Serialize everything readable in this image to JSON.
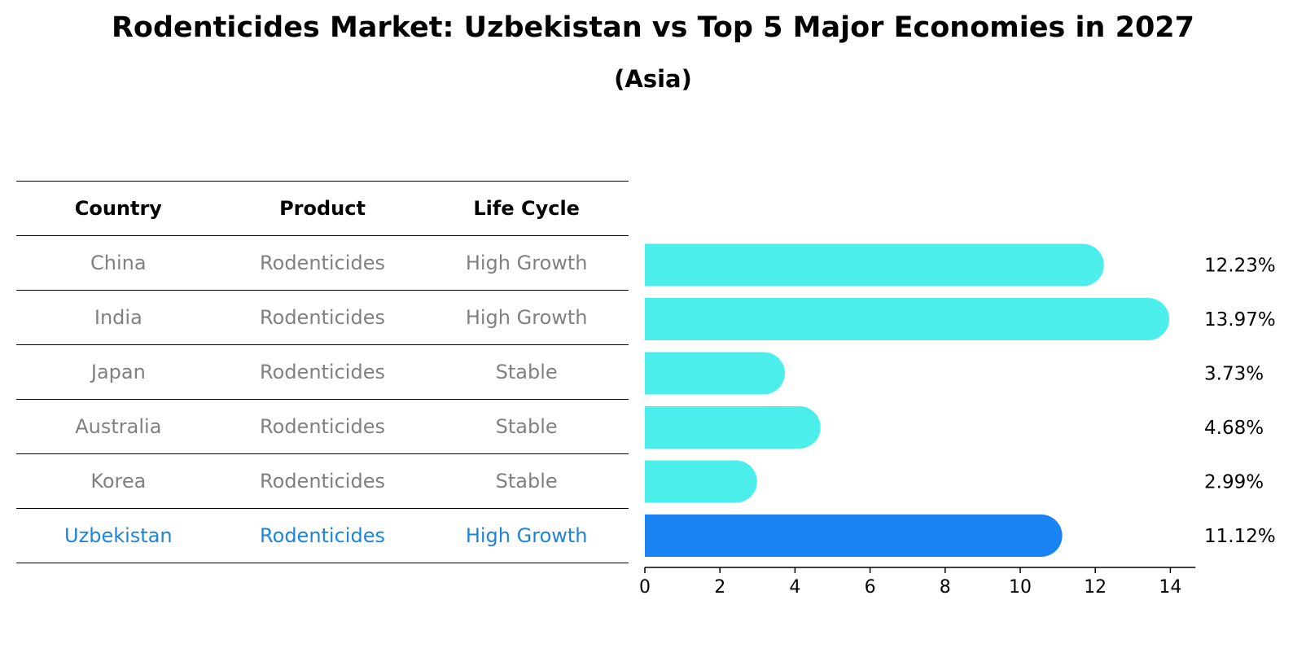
{
  "title": "Rodenticides Market: Uzbekistan vs Top 5 Major Economies in 2027",
  "subtitle": "(Asia)",
  "table": {
    "headers": [
      "Country",
      "Product",
      "Life Cycle"
    ],
    "rows": [
      {
        "country": "China",
        "product": "Rodenticides",
        "life_cycle": "High Growth"
      },
      {
        "country": "India",
        "product": "Rodenticides",
        "life_cycle": "High Growth"
      },
      {
        "country": "Japan",
        "product": "Rodenticides",
        "life_cycle": "Stable"
      },
      {
        "country": "Australia",
        "product": "Rodenticides",
        "life_cycle": "Stable"
      },
      {
        "country": "Korea",
        "product": "Rodenticides",
        "life_cycle": "Stable"
      },
      {
        "country": "Uzbekistan",
        "product": "Rodenticides",
        "life_cycle": "High Growth"
      }
    ]
  },
  "colors": {
    "bar": "#4beeea",
    "highlight_bar": "#1a84f5",
    "highlight_text": "#1f83d8",
    "muted_text": "#808080"
  },
  "chart_data": {
    "type": "bar",
    "orientation": "horizontal",
    "categories": [
      "China",
      "India",
      "Japan",
      "Australia",
      "Korea",
      "Uzbekistan"
    ],
    "values": [
      12.23,
      13.97,
      3.73,
      4.68,
      2.99,
      11.12
    ],
    "value_labels": [
      "12.23%",
      "13.97%",
      "3.73%",
      "4.68%",
      "2.99%",
      "11.12%"
    ],
    "highlight": "Uzbekistan",
    "xlim": [
      0,
      14.67
    ],
    "xticks": [
      0,
      2,
      4,
      6,
      8,
      10,
      12,
      14
    ],
    "grid": false
  }
}
